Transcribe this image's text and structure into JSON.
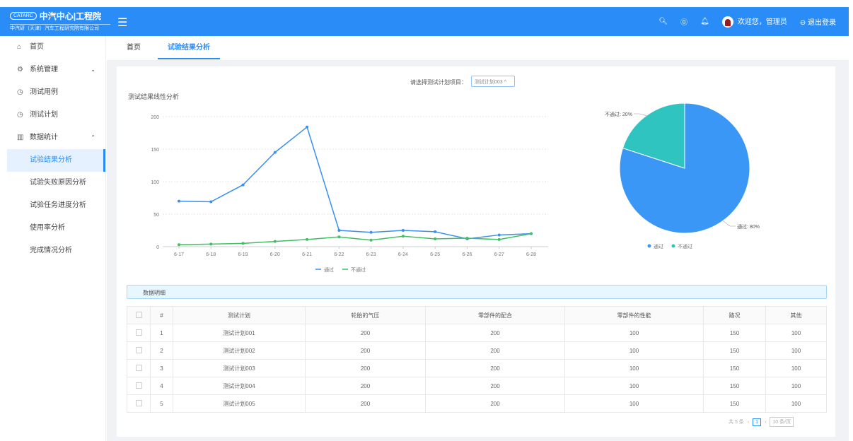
{
  "header": {
    "logo_mark": "CATARC",
    "logo_name": "中汽中心|工程院",
    "logo_sub": "中汽研（天津）汽车工程研究院有限公司",
    "welcome": "欢迎您，管理员",
    "logout": "退出登录"
  },
  "sidebar": {
    "items": [
      {
        "label": "首页",
        "icon": "home-icon"
      },
      {
        "label": "系统管理",
        "icon": "gear-icon",
        "arrow": "⌄"
      },
      {
        "label": "测试用例",
        "icon": "clock-icon"
      },
      {
        "label": "测试计划",
        "icon": "clock-icon"
      },
      {
        "label": "数据统计",
        "icon": "bar-chart-icon",
        "arrow": "⌃"
      }
    ],
    "sub_items": [
      "试验结果分析",
      "试验失败原因分析",
      "试验任务进度分析",
      "使用率分析",
      "完成情况分析"
    ]
  },
  "tabs": [
    "首页",
    "试验结果分析"
  ],
  "selector": {
    "label": "请选择测试计划项目：",
    "value": "测试计划003"
  },
  "chart_title": "测试结果线性分析",
  "chart_data": [
    {
      "type": "line",
      "title": "测试结果线性分析",
      "categories": [
        "6-17",
        "6-18",
        "6-19",
        "6-20",
        "6-21",
        "6-22",
        "6-23",
        "6-24",
        "6-25",
        "6-26",
        "6-27",
        "6-28"
      ],
      "yticks": [
        0,
        50,
        100,
        150,
        200
      ],
      "ylim": [
        0,
        200
      ],
      "grid": true,
      "legend": "bottom",
      "series": [
        {
          "name": "通过",
          "color": "#3a8ff0",
          "values": [
            70,
            69,
            95,
            145,
            184,
            25,
            22,
            25,
            23,
            12,
            18,
            20
          ]
        },
        {
          "name": "不通过",
          "color": "#3cc060",
          "values": [
            3,
            4,
            5,
            8,
            11,
            15,
            10,
            16,
            12,
            13,
            11,
            20
          ]
        }
      ]
    },
    {
      "type": "pie",
      "legend": "bottom",
      "slices": [
        {
          "name": "通过",
          "value": 80,
          "label": "通过: 80%",
          "color": "#3a97f5"
        },
        {
          "name": "不通过",
          "value": 20,
          "label": "不通过: 20%",
          "color": "#2fc4bf"
        }
      ]
    }
  ],
  "details": {
    "title": "数据明细",
    "columns": [
      "#",
      "测试计划",
      "轮胎的气压",
      "零部件的配合",
      "零部件的性能",
      "路况",
      "其他"
    ],
    "rows": [
      [
        "1",
        "测试计划001",
        "200",
        "200",
        "100",
        "150",
        "100"
      ],
      [
        "2",
        "测试计划002",
        "200",
        "200",
        "100",
        "150",
        "100"
      ],
      [
        "3",
        "测试计划003",
        "200",
        "200",
        "100",
        "150",
        "100"
      ],
      [
        "4",
        "测试计划004",
        "200",
        "200",
        "100",
        "150",
        "100"
      ],
      [
        "5",
        "测试计划005",
        "200",
        "200",
        "100",
        "150",
        "100"
      ]
    ]
  },
  "pager": {
    "total": "共 5 条",
    "page": "1",
    "size": "10 条/页"
  }
}
